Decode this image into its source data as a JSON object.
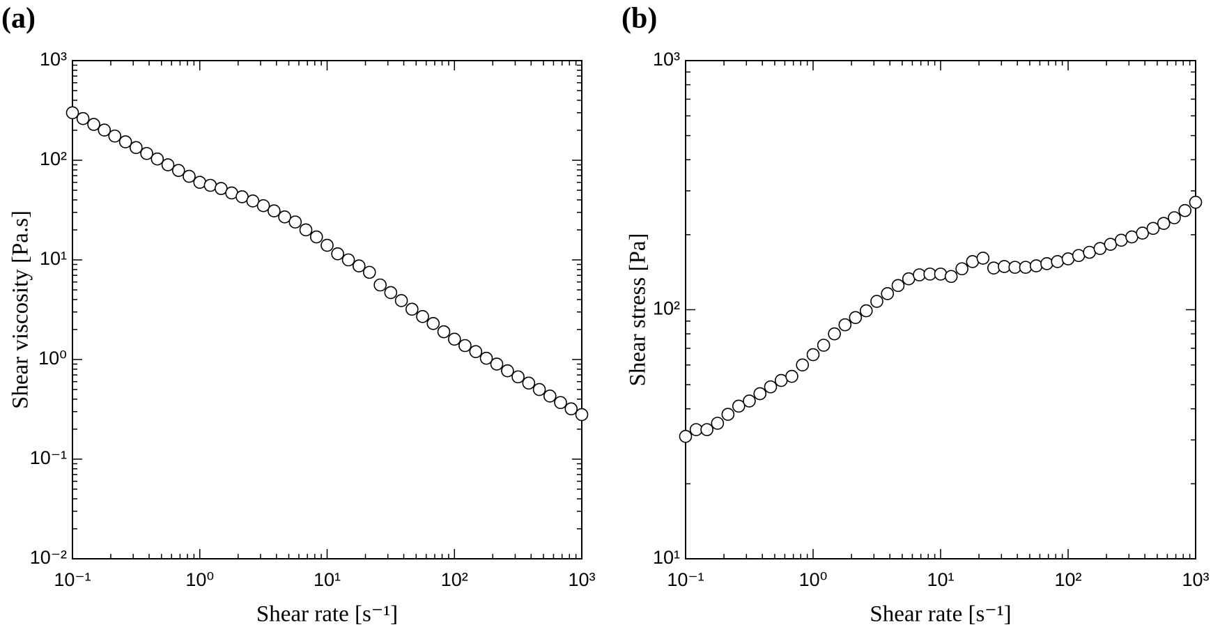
{
  "chart_data": [
    {
      "type": "scatter",
      "panel_label": "(a)",
      "x_label": "Shear rate [s⁻¹]",
      "y_label": "Shear viscosity [Pa.s]",
      "xlog": true,
      "ylog": true,
      "marker_color": "#000000",
      "xlim": [
        0.1,
        1000
      ],
      "ylim": [
        0.01,
        1000
      ],
      "xticks": [
        {
          "value": 0.1,
          "label": "10⁻¹"
        },
        {
          "value": 1,
          "label": "10⁰"
        },
        {
          "value": 10,
          "label": "10¹"
        },
        {
          "value": 100,
          "label": "10²"
        },
        {
          "value": 1000,
          "label": "10³"
        }
      ],
      "yticks": [
        {
          "value": 0.01,
          "label": "10⁻²"
        },
        {
          "value": 0.1,
          "label": "10⁻¹"
        },
        {
          "value": 1,
          "label": "10⁰"
        },
        {
          "value": 10,
          "label": "10¹"
        },
        {
          "value": 100,
          "label": "10²"
        },
        {
          "value": 1000,
          "label": "10³"
        }
      ],
      "x": [
        0.1,
        0.121,
        0.147,
        0.178,
        0.215,
        0.261,
        0.316,
        0.383,
        0.464,
        0.562,
        0.681,
        0.825,
        1,
        1.21,
        1.47,
        1.78,
        2.15,
        2.61,
        3.16,
        3.83,
        4.64,
        5.62,
        6.81,
        8.25,
        10,
        12.1,
        14.7,
        17.8,
        21.5,
        26.1,
        31.6,
        38.3,
        46.4,
        56.2,
        68.1,
        82.5,
        100,
        121,
        147,
        178,
        215,
        261,
        316,
        383,
        464,
        562,
        681,
        825,
        1000
      ],
      "values": [
        300,
        262,
        229,
        201,
        175,
        153,
        134,
        117,
        103,
        90,
        79,
        69,
        60,
        56,
        52,
        47,
        43,
        39,
        35,
        31,
        27,
        24,
        20,
        17,
        14,
        11.5,
        10,
        8.7,
        7.5,
        5.6,
        4.7,
        3.9,
        3.2,
        2.7,
        2.3,
        1.9,
        1.6,
        1.38,
        1.2,
        1.03,
        0.9,
        0.77,
        0.67,
        0.58,
        0.5,
        0.43,
        0.37,
        0.32,
        0.28
      ]
    },
    {
      "type": "scatter",
      "panel_label": "(b)",
      "x_label": "Shear rate [s⁻¹]",
      "y_label": "Shear stress [Pa]",
      "xlog": true,
      "ylog": true,
      "marker_color": "#000000",
      "xlim": [
        0.1,
        1000
      ],
      "ylim": [
        10,
        1000
      ],
      "xticks": [
        {
          "value": 0.1,
          "label": "10⁻¹"
        },
        {
          "value": 1,
          "label": "10⁰"
        },
        {
          "value": 10,
          "label": "10¹"
        },
        {
          "value": 100,
          "label": "10²"
        },
        {
          "value": 1000,
          "label": "10³"
        }
      ],
      "yticks": [
        {
          "value": 10,
          "label": "10¹"
        },
        {
          "value": 100,
          "label": "10²"
        },
        {
          "value": 1000,
          "label": "10³"
        }
      ],
      "x": [
        0.1,
        0.121,
        0.147,
        0.178,
        0.215,
        0.261,
        0.316,
        0.383,
        0.464,
        0.562,
        0.681,
        0.825,
        1,
        1.21,
        1.47,
        1.78,
        2.15,
        2.61,
        3.16,
        3.83,
        4.64,
        5.62,
        6.81,
        8.25,
        10,
        12.1,
        14.7,
        17.8,
        21.5,
        26.1,
        31.6,
        38.3,
        46.4,
        56.2,
        68.1,
        82.5,
        100,
        121,
        147,
        178,
        215,
        261,
        316,
        383,
        464,
        562,
        681,
        825,
        1000
      ],
      "values": [
        31,
        33,
        33,
        35,
        38,
        41,
        43,
        46,
        49,
        52,
        54,
        60,
        66,
        72,
        80,
        87,
        93,
        99,
        108,
        116,
        125,
        133,
        138,
        139,
        139,
        136,
        146,
        156,
        161,
        147,
        149,
        148,
        148,
        150,
        153,
        156,
        160,
        165,
        170,
        176,
        183,
        190,
        196,
        203,
        212,
        222,
        234,
        250,
        270
      ]
    }
  ]
}
